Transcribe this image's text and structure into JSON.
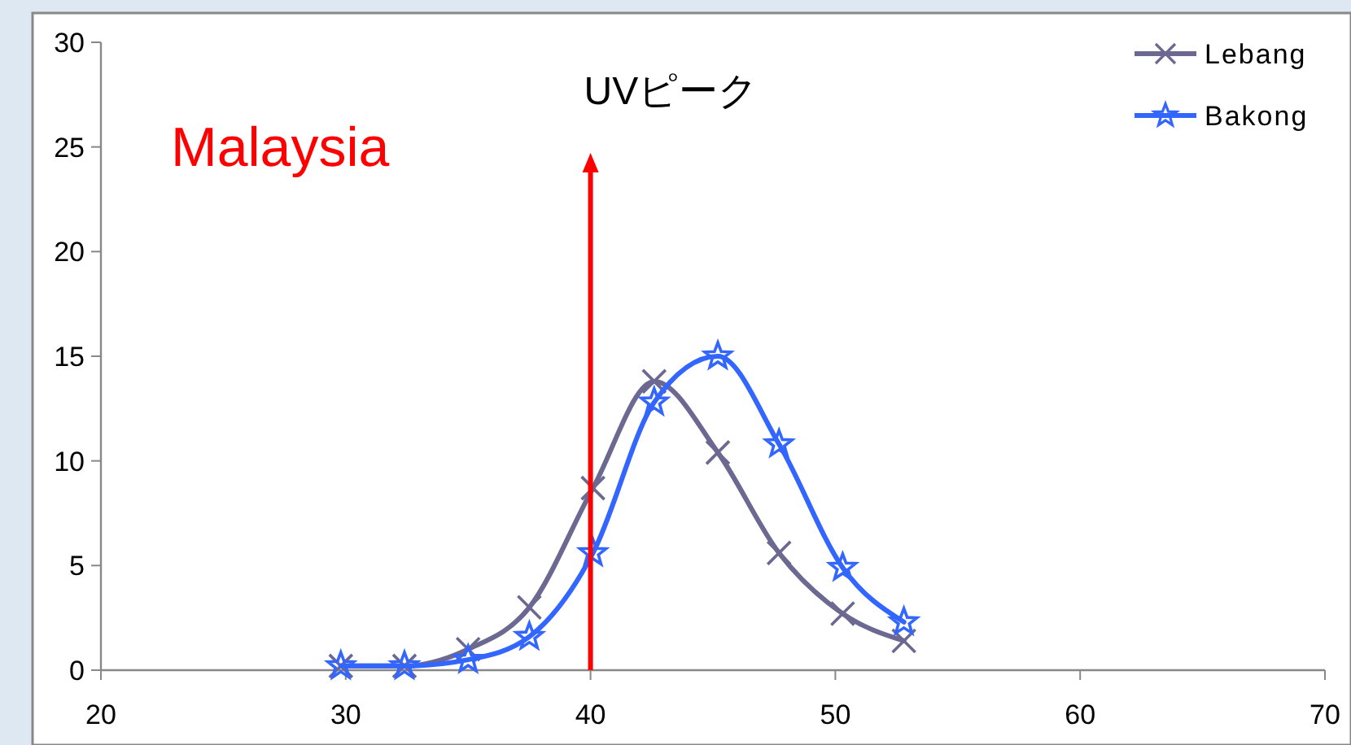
{
  "chart_data": {
    "type": "line",
    "xlim": [
      20,
      70
    ],
    "xticks": [
      20,
      30,
      40,
      50,
      60,
      70
    ],
    "ylim": [
      0,
      30
    ],
    "yticks": [
      0,
      5,
      10,
      15,
      20,
      25,
      30
    ],
    "grid": false,
    "legend": "top right",
    "line_style": "solid",
    "annotations": [
      "Malaysia"
    ],
    "ref_lines": [
      {
        "axis": "x",
        "value": 40,
        "label": "UVピーク",
        "color": "#ff0000"
      }
    ],
    "series": [
      {
        "name": "Lebang",
        "color": "#6b6891",
        "marker": "cross",
        "x": [
          29.8,
          32.4,
          35.0,
          37.5,
          40.1,
          42.6,
          45.2,
          47.7,
          50.3,
          52.8
        ],
        "values": [
          0.2,
          0.2,
          1.0,
          3.0,
          8.7,
          13.8,
          10.4,
          5.6,
          2.7,
          1.4
        ]
      },
      {
        "name": "Bakong",
        "color": "#3366ff",
        "marker": "star",
        "x": [
          29.8,
          32.4,
          35.0,
          37.5,
          40.1,
          42.6,
          45.2,
          47.7,
          50.3,
          52.8
        ],
        "values": [
          0.2,
          0.2,
          0.5,
          1.6,
          5.6,
          12.8,
          15.0,
          10.8,
          4.9,
          2.3
        ]
      }
    ]
  }
}
